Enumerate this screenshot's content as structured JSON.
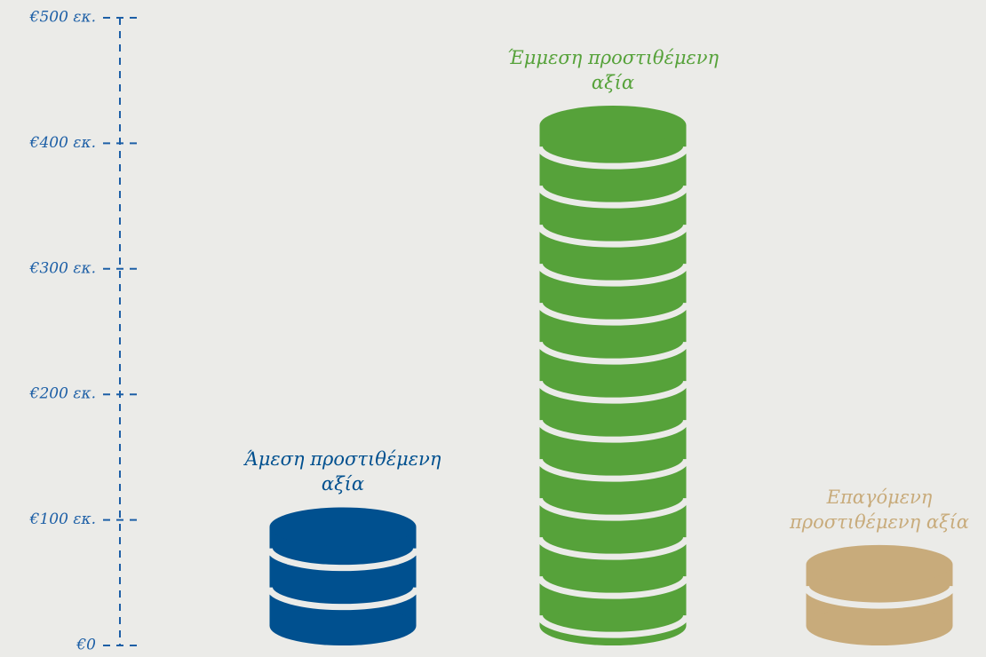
{
  "chart_data": {
    "type": "bar",
    "categories": [
      "Άμεση προστιθέμενη αξία",
      "Έμμεση προστιθέμενη αξία",
      "Επαγόμενη προστιθέμενη αξία"
    ],
    "values": [
      110,
      430,
      80
    ],
    "colors": [
      "#00508f",
      "#56a23a",
      "#c8ab7b"
    ],
    "ylim": [
      0,
      500
    ],
    "yticks": [
      {
        "value": 0,
        "label": "€0"
      },
      {
        "value": 100,
        "label": "€100 εκ."
      },
      {
        "value": 200,
        "label": "€200 εκ."
      },
      {
        "value": 300,
        "label": "€300 εκ."
      },
      {
        "value": 400,
        "label": "€400 εκ."
      },
      {
        "value": 500,
        "label": "€500 εκ."
      }
    ]
  }
}
